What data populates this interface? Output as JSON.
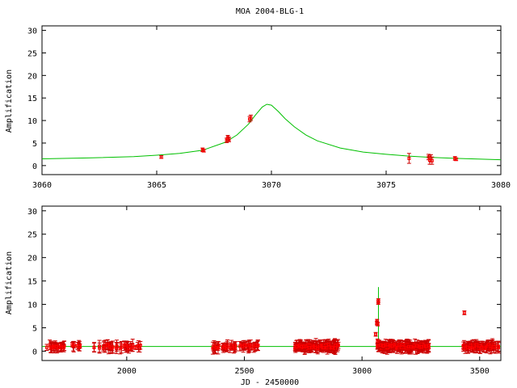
{
  "colors": {
    "model": "#00c000",
    "data": "#ff0000",
    "errorbar": "#cc0000",
    "frame": "#000000",
    "background": "#ffffff"
  },
  "chart_data": [
    {
      "type": "scatter",
      "panel": "top",
      "title": "MOA 2004-BLG-1",
      "xlabel": "",
      "ylabel": "Amplification",
      "xlim": [
        3060,
        3080
      ],
      "ylim": [
        -2,
        31
      ],
      "xticks": [
        3060,
        3065,
        3070,
        3075,
        3080
      ],
      "yticks": [
        0,
        5,
        10,
        15,
        20,
        25,
        30
      ],
      "grid": false,
      "legend": "none",
      "model": {
        "style": "line",
        "peak_x": 3069.8,
        "peak_y": 13.7,
        "baseline": 1.2,
        "x": [
          3060,
          3062,
          3064,
          3065,
          3066,
          3067,
          3068,
          3068.5,
          3069,
          3069.3,
          3069.6,
          3069.8,
          3070.0,
          3070.3,
          3070.6,
          3071,
          3071.5,
          3072,
          3073,
          3074,
          3075,
          3076,
          3077,
          3078,
          3080
        ],
        "y": [
          1.5,
          1.7,
          2.0,
          2.3,
          2.7,
          3.4,
          5.2,
          6.8,
          9.2,
          11.2,
          13.0,
          13.6,
          13.4,
          12.0,
          10.4,
          8.6,
          6.8,
          5.5,
          3.9,
          3.0,
          2.5,
          2.1,
          1.8,
          1.6,
          1.3
        ]
      },
      "series": [
        {
          "values": [
            [
              3065.2,
              1.9,
              0.3
            ],
            [
              3067.0,
              3.5,
              0.4
            ],
            [
              3067.05,
              3.3,
              0.3
            ],
            [
              3068.05,
              5.6,
              0.5
            ],
            [
              3068.1,
              6.2,
              0.5
            ],
            [
              3068.15,
              5.8,
              0.5
            ],
            [
              3069.05,
              10.3,
              0.6
            ],
            [
              3069.1,
              10.6,
              0.6
            ],
            [
              3076.0,
              1.6,
              1.1
            ],
            [
              3076.85,
              1.9,
              0.6
            ],
            [
              3076.9,
              1.2,
              0.9
            ],
            [
              3076.95,
              1.6,
              0.8
            ],
            [
              3077.0,
              1.1,
              0.8
            ],
            [
              3078.0,
              1.6,
              0.4
            ],
            [
              3078.05,
              1.4,
              0.3
            ]
          ]
        }
      ]
    },
    {
      "type": "scatter",
      "panel": "bottom",
      "xlabel": "JD - 2450000",
      "ylabel": "Amplification",
      "xlim": [
        1640,
        3590
      ],
      "ylim": [
        -2,
        31
      ],
      "xticks": [
        2000,
        2500,
        3000,
        3500
      ],
      "yticks": [
        0,
        5,
        10,
        15,
        20,
        25,
        30
      ],
      "grid": false,
      "legend": "none",
      "model": {
        "style": "line",
        "baseline": 1.0,
        "peak_x": 3069.8,
        "peak_y": 13.7
      },
      "series": [
        {
          "values": {
            "seasons": [
              [
                1660,
                1735,
                28
              ],
              [
                1765,
                1805,
                10
              ],
              [
                1860,
                2060,
                45
              ],
              [
                2365,
                2560,
                60
              ],
              [
                2715,
                2900,
                140
              ],
              [
                3065,
                3290,
                170
              ],
              [
                3430,
                3580,
                80
              ]
            ],
            "outliers": [
              [
                3058,
                3.6
              ],
              [
                3063,
                6.0
              ],
              [
                3064,
                6.4
              ],
              [
                3069,
                10.4
              ],
              [
                3069.5,
                10.8
              ],
              [
                3435,
                8.2
              ],
              [
                3067,
                5.8
              ],
              [
                3066,
                2.2
              ]
            ]
          }
        }
      ]
    }
  ]
}
